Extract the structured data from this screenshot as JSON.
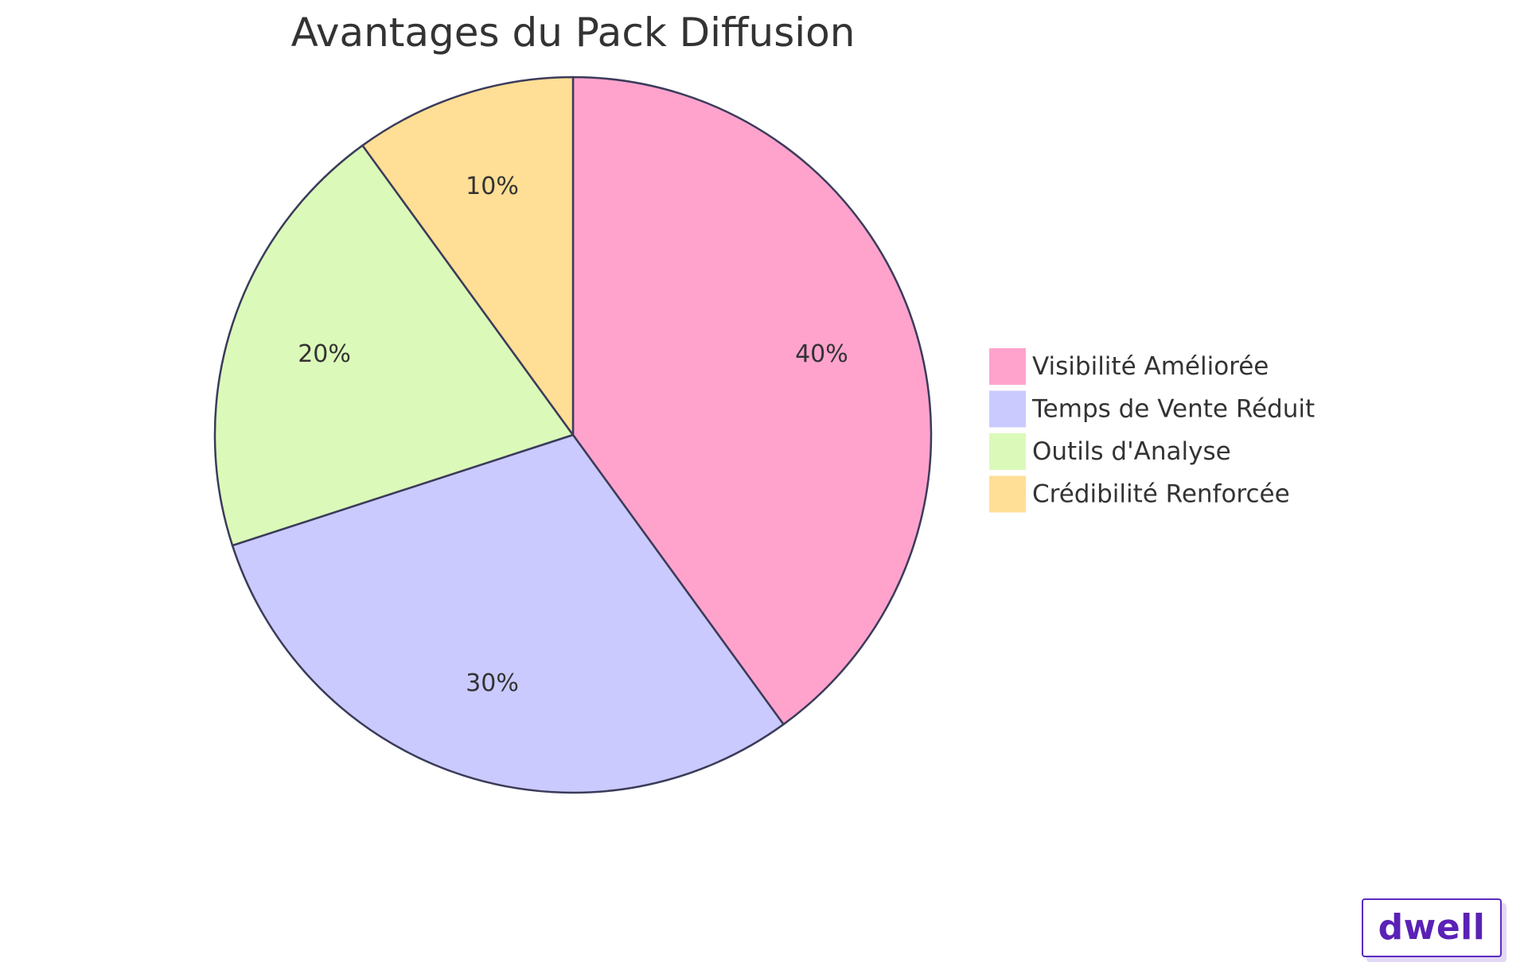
{
  "chart_data": {
    "type": "pie",
    "title": "Avantages du Pack Diffusion",
    "slices": [
      {
        "name": "Visibilité Améliorée",
        "value": 40,
        "label": "40%",
        "color": "#FFA3CD"
      },
      {
        "name": "Temps de Vente Réduit",
        "value": 30,
        "label": "30%",
        "color": "#CACAFF"
      },
      {
        "name": "Outils d'Analyse",
        "value": 20,
        "label": "20%",
        "color": "#DBFAB9"
      },
      {
        "name": "Crédibilité Renforcée",
        "value": 10,
        "label": "10%",
        "color": "#FFDE95"
      }
    ],
    "start": "top",
    "direction": "clockwise",
    "stroke_color": "#3B3B5A",
    "legend_position": "right"
  },
  "brand": {
    "name": "dwell"
  }
}
